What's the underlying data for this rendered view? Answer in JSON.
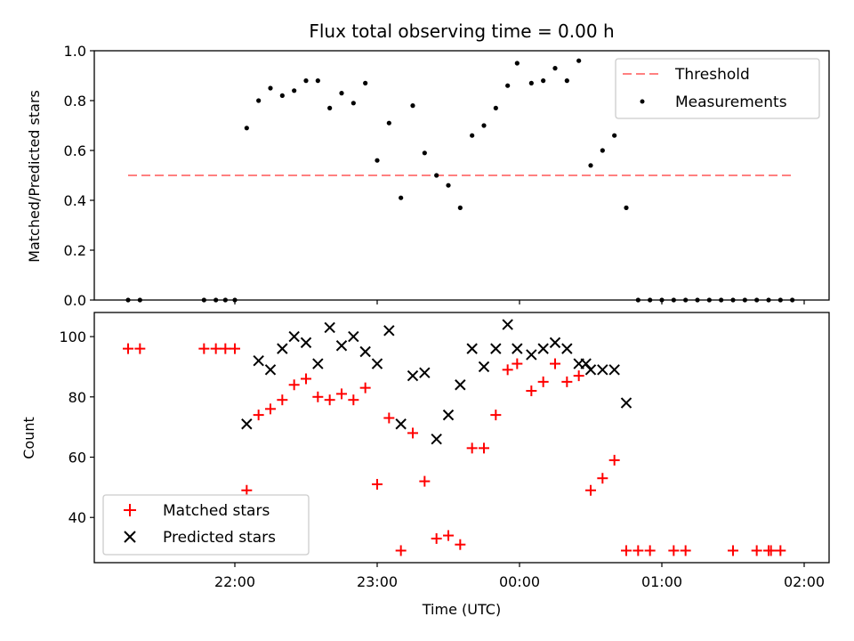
{
  "chart_data": [
    {
      "type": "scatter",
      "title": "Flux total observing time = 0.00 h",
      "xlabel": "",
      "ylabel": "Matched/Predicted stars",
      "ylim": [
        0,
        1
      ],
      "yticks": [
        "0.0",
        "0.2",
        "0.4",
        "0.6",
        "0.8",
        "1.0"
      ],
      "legend_position": "top-right",
      "series": [
        {
          "name": "Threshold",
          "style": "dashed-line",
          "color": "#ff8080",
          "x": [
            "21:15",
            "01:55"
          ],
          "y": [
            0.5,
            0.5
          ]
        },
        {
          "name": "Measurements",
          "style": "dot",
          "color": "#000000",
          "x": [
            "21:15",
            "21:20",
            "21:47",
            "21:52",
            "21:56",
            "22:00",
            "22:05",
            "22:10",
            "22:15",
            "22:20",
            "22:25",
            "22:30",
            "22:35",
            "22:40",
            "22:45",
            "22:50",
            "22:55",
            "23:00",
            "23:05",
            "23:10",
            "23:15",
            "23:20",
            "23:25",
            "23:30",
            "23:35",
            "23:40",
            "23:45",
            "23:50",
            "23:55",
            "23:59",
            "00:05",
            "00:10",
            "00:15",
            "00:20",
            "00:25",
            "00:30",
            "00:35",
            "00:40",
            "00:45",
            "00:50",
            "00:55",
            "01:00",
            "01:05",
            "01:10",
            "01:15",
            "01:20",
            "01:25",
            "01:30",
            "01:35",
            "01:40",
            "01:45",
            "01:50",
            "01:55"
          ],
          "y": [
            0.0,
            0.0,
            0.0,
            0.0,
            0.0,
            0.0,
            0.69,
            0.8,
            0.85,
            0.82,
            0.84,
            0.88,
            0.88,
            0.77,
            0.83,
            0.79,
            0.87,
            0.56,
            0.71,
            0.41,
            0.78,
            0.59,
            0.5,
            0.46,
            0.37,
            0.66,
            0.7,
            0.77,
            0.86,
            0.95,
            0.87,
            0.88,
            0.93,
            0.88,
            0.96,
            0.54,
            0.6,
            0.66,
            0.37,
            0.0,
            0.0,
            0.0,
            0.0,
            0.0,
            0.0,
            0.0,
            0.0,
            0.0,
            0.0,
            0.0,
            0.0,
            0.0,
            0.0
          ]
        }
      ]
    },
    {
      "type": "scatter",
      "title": "",
      "xlabel": "Time (UTC)",
      "ylabel": "Count",
      "ylim": [
        25,
        108
      ],
      "yticks": [
        "40",
        "60",
        "80",
        "100"
      ],
      "xticks": [
        "22:00",
        "23:00",
        "00:00",
        "01:00",
        "02:00"
      ],
      "legend_position": "bottom-left",
      "series": [
        {
          "name": "Matched stars",
          "marker": "plus",
          "color": "#ff0000",
          "x": [
            "21:15",
            "21:20",
            "21:47",
            "21:52",
            "21:56",
            "22:00",
            "22:05",
            "22:10",
            "22:15",
            "22:20",
            "22:25",
            "22:30",
            "22:35",
            "22:40",
            "22:45",
            "22:50",
            "22:55",
            "23:00",
            "23:05",
            "23:10",
            "23:15",
            "23:20",
            "23:25",
            "23:30",
            "23:35",
            "23:40",
            "23:45",
            "23:50",
            "23:55",
            "23:59",
            "00:05",
            "00:10",
            "00:15",
            "00:20",
            "00:25",
            "00:30",
            "00:35",
            "00:40",
            "00:45",
            "00:50",
            "00:55",
            "01:05",
            "01:10",
            "01:30",
            "01:40",
            "01:45",
            "01:46",
            "01:50"
          ],
          "y": [
            96,
            96,
            96,
            96,
            96,
            96,
            49,
            74,
            76,
            79,
            84,
            86,
            80,
            79,
            81,
            79,
            83,
            51,
            73,
            29,
            68,
            52,
            33,
            34,
            31,
            63,
            63,
            74,
            89,
            91,
            82,
            85,
            91,
            85,
            87,
            49,
            53,
            59,
            29,
            29,
            29,
            29,
            29,
            29,
            29,
            29,
            29,
            29
          ]
        },
        {
          "name": "Predicted stars",
          "marker": "x",
          "color": "#000000",
          "x": [
            "22:05",
            "22:10",
            "22:15",
            "22:20",
            "22:25",
            "22:30",
            "22:35",
            "22:40",
            "22:45",
            "22:50",
            "22:55",
            "23:00",
            "23:05",
            "23:10",
            "23:15",
            "23:20",
            "23:25",
            "23:30",
            "23:35",
            "23:40",
            "23:45",
            "23:50",
            "23:55",
            "23:59",
            "00:05",
            "00:10",
            "00:15",
            "00:20",
            "00:25",
            "00:28",
            "00:30",
            "00:35",
            "00:40",
            "00:45"
          ],
          "y": [
            71,
            92,
            89,
            96,
            100,
            98,
            91,
            103,
            97,
            100,
            95,
            91,
            102,
            71,
            87,
            88,
            66,
            74,
            84,
            96,
            90,
            96,
            104,
            96,
            94,
            96,
            98,
            96,
            91,
            91,
            89,
            89,
            89,
            78
          ]
        }
      ]
    }
  ]
}
